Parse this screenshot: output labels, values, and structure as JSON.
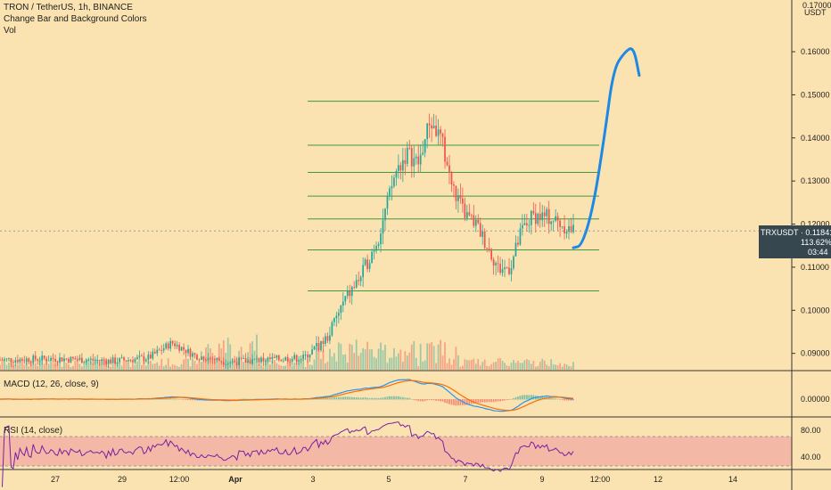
{
  "header": {
    "symbol_line": "TRON / TetherUS, 1h, BINANCE",
    "indicator_1": "Change Bar and Background Colors",
    "indicator_2": "Vol"
  },
  "panes": {
    "macd_label": "MACD (12, 26, close, 9)",
    "rsi_label": "RSI (14, close)"
  },
  "price_axis": {
    "unit": "USDT",
    "top_partial": "0.17000",
    "ticks": [
      "0.16000",
      "0.15000",
      "0.14000",
      "0.13000",
      "0.12000",
      "0.11000",
      "0.10000",
      "0.09000"
    ]
  },
  "price_tag": {
    "symbol": "TRXUSDT",
    "price": "0.11841",
    "line_1": "TRXUSDT · 0.11841",
    "change": "113.62%",
    "countdown": "03:44"
  },
  "macd_axis": {
    "tick": "0.00000"
  },
  "rsi_axis": {
    "ticks": [
      "80.00",
      "40.00"
    ]
  },
  "time_axis": {
    "labels": [
      "27",
      "29",
      "12:00",
      "Apr",
      "3",
      "5",
      "7",
      "9",
      "12:00",
      "12",
      "14"
    ]
  },
  "colors": {
    "background": "#fbe3b1",
    "bull": "#26a69a",
    "bear": "#ef5350",
    "level_line": "#3d9a3d",
    "macd_line": "#2196f3",
    "signal_line": "#ff6d00",
    "rsi_line": "#7b1fa2",
    "rsi_band": "#f4b8a6",
    "drawing": "#1e88e5",
    "price_tag_bg": "#37474f"
  },
  "chart_data": {
    "type": "candlestick",
    "symbol": "TRON / TetherUS",
    "interval": "1h",
    "exchange": "BINANCE",
    "last_price": 0.11841,
    "price_range": [
      0.086,
      0.172
    ],
    "horizontal_levels": [
      0.1485,
      0.1383,
      0.132,
      0.1265,
      0.1212,
      0.114,
      0.1045
    ],
    "price_path": [
      {
        "t": 0,
        "p": 0.0885
      },
      {
        "t": 0.1,
        "p": 0.0888
      },
      {
        "t": 0.2,
        "p": 0.0882
      },
      {
        "t": 0.26,
        "p": 0.089
      },
      {
        "t": 0.3,
        "p": 0.0925
      },
      {
        "t": 0.34,
        "p": 0.0895
      },
      {
        "t": 0.4,
        "p": 0.088
      },
      {
        "t": 0.46,
        "p": 0.0885
      },
      {
        "t": 0.53,
        "p": 0.089
      },
      {
        "t": 0.57,
        "p": 0.0935
      },
      {
        "t": 0.6,
        "p": 0.102
      },
      {
        "t": 0.63,
        "p": 0.108
      },
      {
        "t": 0.66,
        "p": 0.117
      },
      {
        "t": 0.69,
        "p": 0.132
      },
      {
        "t": 0.71,
        "p": 0.1365
      },
      {
        "t": 0.73,
        "p": 0.134
      },
      {
        "t": 0.75,
        "p": 0.144
      },
      {
        "t": 0.77,
        "p": 0.1395
      },
      {
        "t": 0.79,
        "p": 0.128
      },
      {
        "t": 0.81,
        "p": 0.1225
      },
      {
        "t": 0.83,
        "p": 0.12
      },
      {
        "t": 0.85,
        "p": 0.115
      },
      {
        "t": 0.87,
        "p": 0.1095
      },
      {
        "t": 0.89,
        "p": 0.11
      },
      {
        "t": 0.91,
        "p": 0.1185
      },
      {
        "t": 0.93,
        "p": 0.122
      },
      {
        "t": 0.96,
        "p": 0.1215
      },
      {
        "t": 1.0,
        "p": 0.1184
      }
    ],
    "drawn_arrow": [
      {
        "t": 1.0,
        "p": 0.1145
      },
      {
        "t": 1.015,
        "p": 0.115
      },
      {
        "t": 1.035,
        "p": 0.124
      },
      {
        "t": 1.055,
        "p": 0.141
      },
      {
        "t": 1.07,
        "p": 0.156
      },
      {
        "t": 1.09,
        "p": 0.16
      },
      {
        "t": 1.105,
        "p": 0.1612
      },
      {
        "t": 1.115,
        "p": 0.1545
      }
    ],
    "rsi_range": [
      25,
      95
    ],
    "rsi_band": [
      30,
      70
    ]
  }
}
